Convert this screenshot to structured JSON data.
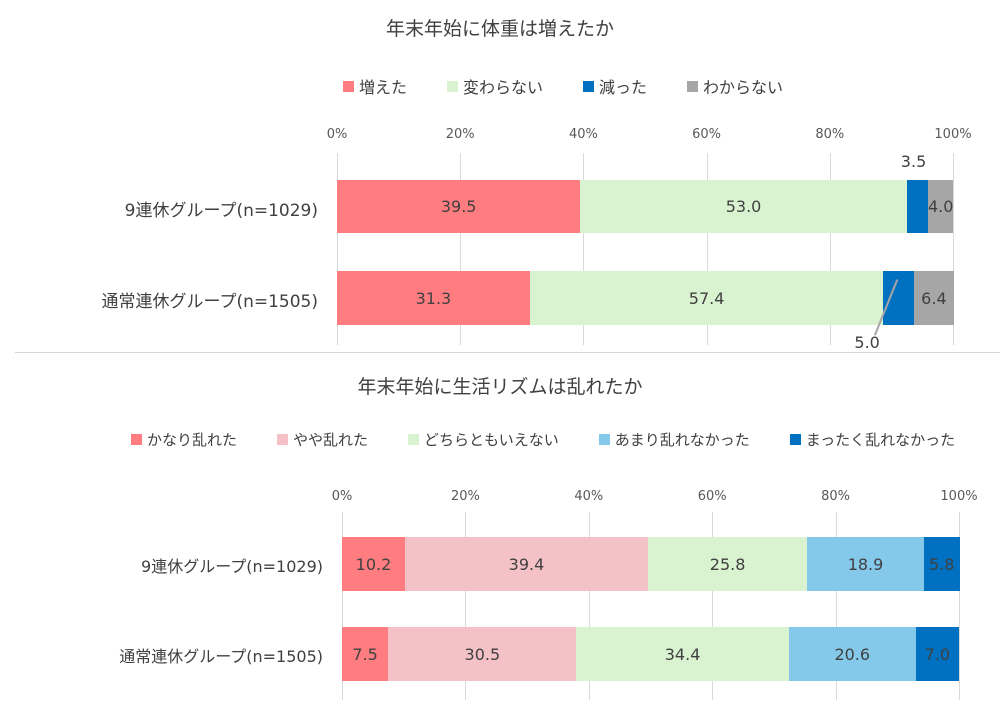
{
  "chart_data": [
    {
      "type": "bar",
      "stacked": true,
      "orientation": "horizontal",
      "title": "年末年始に体重は増えたか",
      "categories": [
        "9連休グループ(n=1029)",
        "通常連休グループ(n=1505)"
      ],
      "xlim": [
        0,
        100
      ],
      "xticks": [
        "0%",
        "20%",
        "40%",
        "60%",
        "80%",
        "100%"
      ],
      "legend_position": "top",
      "series": [
        {
          "name": "増えた",
          "color": "#ff7c80",
          "values": [
            39.5,
            31.3
          ]
        },
        {
          "name": "変わらない",
          "color": "#d9f2d0",
          "values": [
            53.0,
            57.4
          ]
        },
        {
          "name": "減った",
          "color": "#0070c0",
          "values": [
            3.5,
            5.0
          ]
        },
        {
          "name": "わからない",
          "color": "#a6a6a6",
          "values": [
            4.0,
            6.4
          ]
        }
      ]
    },
    {
      "type": "bar",
      "stacked": true,
      "orientation": "horizontal",
      "title": "年末年始に生活リズムは乱れたか",
      "categories": [
        "9連休グループ(n=1029)",
        "通常連休グループ(n=1505)"
      ],
      "xlim": [
        0,
        100
      ],
      "xticks": [
        "0%",
        "20%",
        "40%",
        "60%",
        "80%",
        "100%"
      ],
      "legend_position": "top",
      "series": [
        {
          "name": "かなり乱れた",
          "color": "#ff7c80",
          "values": [
            10.2,
            7.5
          ]
        },
        {
          "name": "やや乱れた",
          "color": "#f4c2c6",
          "values": [
            39.4,
            30.5
          ]
        },
        {
          "name": "どちらともいえない",
          "color": "#d9f2d0",
          "values": [
            25.8,
            34.4
          ]
        },
        {
          "name": "あまり乱れなかった",
          "color": "#84c8ea",
          "values": [
            18.9,
            20.6
          ]
        },
        {
          "name": "まったく乱れなかった",
          "color": "#0070c0",
          "values": [
            5.8,
            7.0
          ]
        }
      ]
    }
  ]
}
